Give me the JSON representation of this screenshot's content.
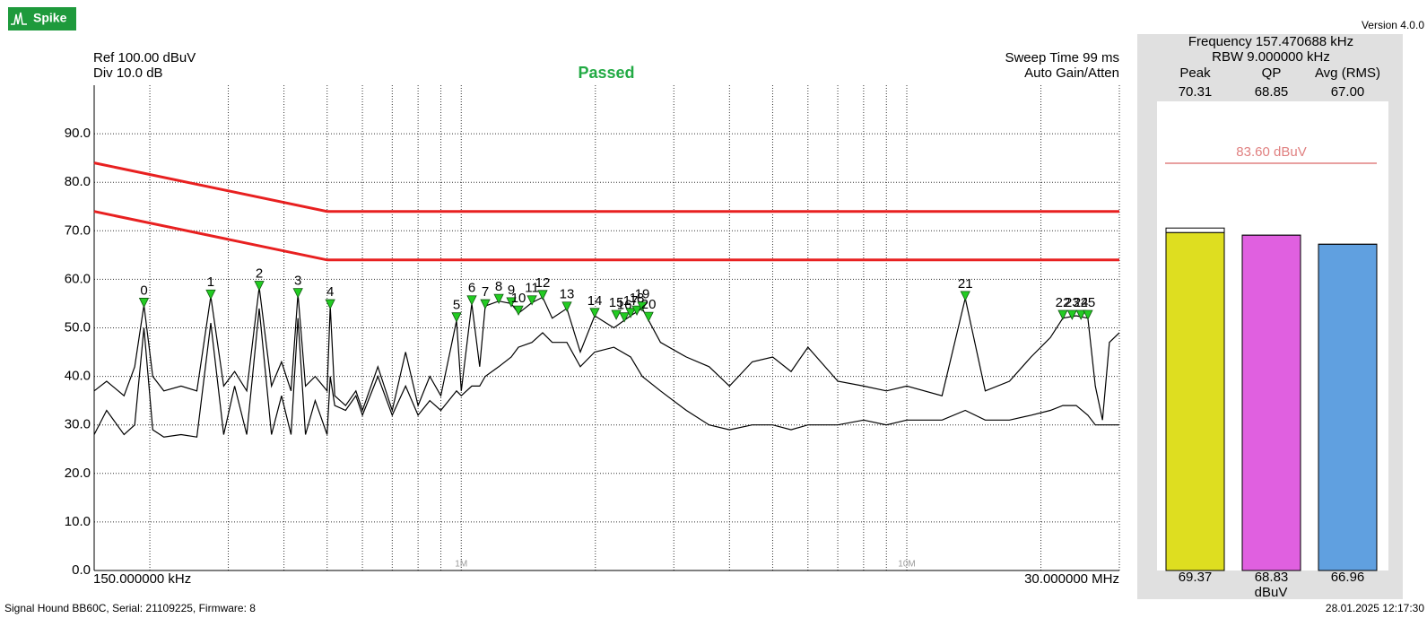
{
  "app": {
    "logo": "Spike",
    "version": "Version 4.0.0"
  },
  "status_bar": {
    "device": "Signal Hound BB60C, Serial: 21109225, Firmware: 8",
    "timestamp": "28.01.2025 12:17:30"
  },
  "chart_data": [
    {
      "type": "line",
      "xscale": "log",
      "grid": true,
      "ref_label": "Ref 100.00 dBuV",
      "div_label": "Div 10.0 dB",
      "status": "Passed",
      "status_color": "#22aa44",
      "sweep_label": "Sweep Time 99 ms",
      "gain_label": "Auto Gain/Atten",
      "x_start_label": "150.000000 kHz",
      "x_end_label": "30.000000 MHz",
      "xlim": [
        0.15,
        30
      ],
      "ylim": [
        0,
        100
      ],
      "xticks": [
        {
          "value": 1,
          "label": "1M"
        },
        {
          "value": 10,
          "label": "10M"
        }
      ],
      "xgrid": [
        0.2,
        0.3,
        0.4,
        0.5,
        0.6,
        0.7,
        0.8,
        0.9,
        2,
        3,
        4,
        5,
        6,
        7,
        8,
        9,
        20
      ],
      "yticks": [
        {
          "value": 0,
          "label": "0.0"
        },
        {
          "value": 10,
          "label": "10.0"
        },
        {
          "value": 20,
          "label": "20.0"
        },
        {
          "value": 30,
          "label": "30.0"
        },
        {
          "value": 40,
          "label": "40.0"
        },
        {
          "value": 50,
          "label": "50.0"
        },
        {
          "value": 60,
          "label": "60.0"
        },
        {
          "value": 70,
          "label": "70.0"
        },
        {
          "value": 80,
          "label": "80.0"
        },
        {
          "value": 90,
          "label": "90.0"
        }
      ],
      "x": [
        0.15,
        0.16,
        0.175,
        0.185,
        0.194,
        0.203,
        0.215,
        0.235,
        0.255,
        0.274,
        0.293,
        0.31,
        0.33,
        0.352,
        0.375,
        0.395,
        0.415,
        0.43,
        0.447,
        0.47,
        0.5,
        0.508,
        0.52,
        0.55,
        0.58,
        0.6,
        0.65,
        0.7,
        0.75,
        0.8,
        0.85,
        0.9,
        0.976,
        1.0,
        1.056,
        1.1,
        1.132,
        1.214,
        1.295,
        1.344,
        1.441,
        1.523,
        1.6,
        1.726,
        1.85,
        1.993,
        2.2,
        2.4,
        2.548,
        2.8,
        3.2,
        3.6,
        4.0,
        4.5,
        5.0,
        5.5,
        6.0,
        7.0,
        8.0,
        9.0,
        10,
        12,
        13.53,
        15,
        17,
        19,
        21,
        22.4,
        24,
        25.5,
        26.5,
        27.5,
        28.5,
        30
      ],
      "series": [
        {
          "color": "#000000",
          "values": [
            37,
            39,
            36,
            42,
            54.7,
            40,
            37,
            38,
            37,
            56.5,
            38,
            41,
            37,
            58.4,
            38,
            43,
            37,
            57,
            38,
            40,
            37,
            54.5,
            36,
            34,
            37,
            33,
            42,
            33,
            45,
            34,
            40,
            36,
            51.5,
            37,
            55,
            42,
            54.5,
            55.5,
            55,
            53,
            55.2,
            56.3,
            52,
            54,
            45,
            52.5,
            50,
            52.5,
            54,
            47,
            44,
            42,
            38,
            43,
            44,
            41,
            46,
            39,
            38,
            37,
            38,
            36,
            56.1,
            37,
            39,
            44,
            48,
            52,
            52.5,
            52,
            38,
            31,
            47,
            49
          ]
        },
        {
          "color": "#000000",
          "values": [
            28,
            33,
            28,
            30,
            50,
            29,
            27.5,
            28,
            27.5,
            51,
            28,
            38,
            28,
            54,
            28,
            36,
            28,
            52,
            28,
            35,
            28,
            40,
            34,
            33,
            36,
            32,
            40,
            32,
            38,
            32,
            35,
            33,
            37,
            36,
            38,
            38,
            40,
            42,
            44,
            46,
            47,
            49,
            47,
            47,
            42,
            45,
            46,
            44,
            40,
            37,
            33,
            30,
            29,
            30,
            30,
            29,
            30,
            30,
            31,
            30,
            31,
            31,
            33,
            31,
            31,
            32,
            33,
            34,
            34,
            32,
            30,
            30,
            30,
            30
          ]
        }
      ],
      "limits": [
        {
          "color": "#e82020",
          "x": [
            0.15,
            0.5,
            30
          ],
          "values": [
            84,
            74,
            74
          ]
        },
        {
          "color": "#e82020",
          "x": [
            0.15,
            0.5,
            30
          ],
          "values": [
            74,
            64,
            64
          ]
        }
      ],
      "markers": {
        "color": "#22cc22",
        "labels": [
          0,
          1,
          2,
          3,
          4,
          5,
          6,
          7,
          8,
          9,
          10,
          11,
          12,
          13,
          14,
          15,
          16,
          17,
          18,
          19,
          20,
          21,
          22,
          23,
          24,
          25
        ],
        "x": [
          0.194,
          0.274,
          0.352,
          0.43,
          0.508,
          0.976,
          1.056,
          1.132,
          1.214,
          1.295,
          1.344,
          1.441,
          1.523,
          1.726,
          1.993,
          2.228,
          2.323,
          2.4,
          2.478,
          2.548,
          2.633,
          13.53,
          22.4,
          23.5,
          24.6,
          25.5
        ],
        "values": [
          55,
          56.7,
          58.5,
          57,
          54.7,
          52,
          55.5,
          54.7,
          55.8,
          55.1,
          53.4,
          55.5,
          56.6,
          54.2,
          52.9,
          52.5,
          52,
          52.9,
          53.4,
          54.2,
          52.1,
          56.4,
          52.5,
          52.5,
          52.5,
          52.5
        ]
      }
    },
    {
      "type": "bar",
      "title": "Frequency 157.470688 kHz",
      "subtitle": "RBW 9.000000 kHz",
      "y_label": "dBuV",
      "ylim": [
        0,
        100
      ],
      "categories": [
        "Peak",
        "QP",
        "Avg (RMS)"
      ],
      "colors": [
        "#dede20",
        "#e060e0",
        "#60a0e0"
      ],
      "values": [
        69.37,
        68.83,
        66.96
      ],
      "max_hold": {
        "values": [
          70.31,
          68.85,
          67.0
        ],
        "value_labels": [
          "70.31",
          "68.85",
          "67.00"
        ]
      },
      "limit": {
        "value": 83.6,
        "label": "83.60 dBuV",
        "color": "#e08080"
      }
    }
  ]
}
